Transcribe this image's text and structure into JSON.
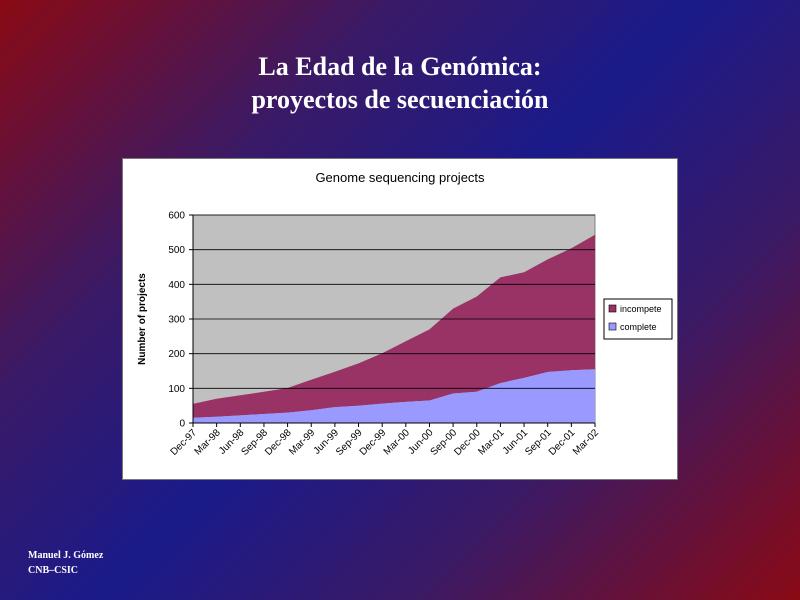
{
  "slide": {
    "title_line1": "La Edad de la Genómica:",
    "title_line2": "proyectos de secuenciación",
    "author": "Manuel J. Gómez",
    "institution": "CNB–CSIC"
  },
  "chart_data": {
    "type": "area",
    "title": "Genome sequencing projects",
    "ylabel": "Number of projects",
    "xlabel": "",
    "ylim": [
      0,
      600
    ],
    "yticks": [
      0,
      100,
      200,
      300,
      400,
      500,
      600
    ],
    "categories": [
      "Dec-97",
      "Mar-98",
      "Jun-98",
      "Sep-98",
      "Dec-98",
      "Mar-99",
      "Jun-99",
      "Sep-99",
      "Dec-99",
      "Mar-00",
      "Jun-00",
      "Sep-00",
      "Dec-00",
      "Mar-01",
      "Jun-01",
      "Sep-01",
      "Dec-01",
      "Mar-02"
    ],
    "stacked": true,
    "series": [
      {
        "name": "complete",
        "color": "#9999ff",
        "values": [
          15,
          18,
          22,
          26,
          30,
          37,
          46,
          50,
          56,
          61,
          65,
          85,
          90,
          115,
          130,
          147,
          152,
          155
        ]
      },
      {
        "name": "incompete",
        "color": "#993366",
        "values": [
          40,
          52,
          58,
          64,
          71,
          88,
          102,
          122,
          145,
          175,
          205,
          245,
          275,
          305,
          305,
          325,
          352,
          388
        ]
      }
    ],
    "grid": true,
    "plot_background": "#c0c0c0",
    "legend_position": "right"
  }
}
